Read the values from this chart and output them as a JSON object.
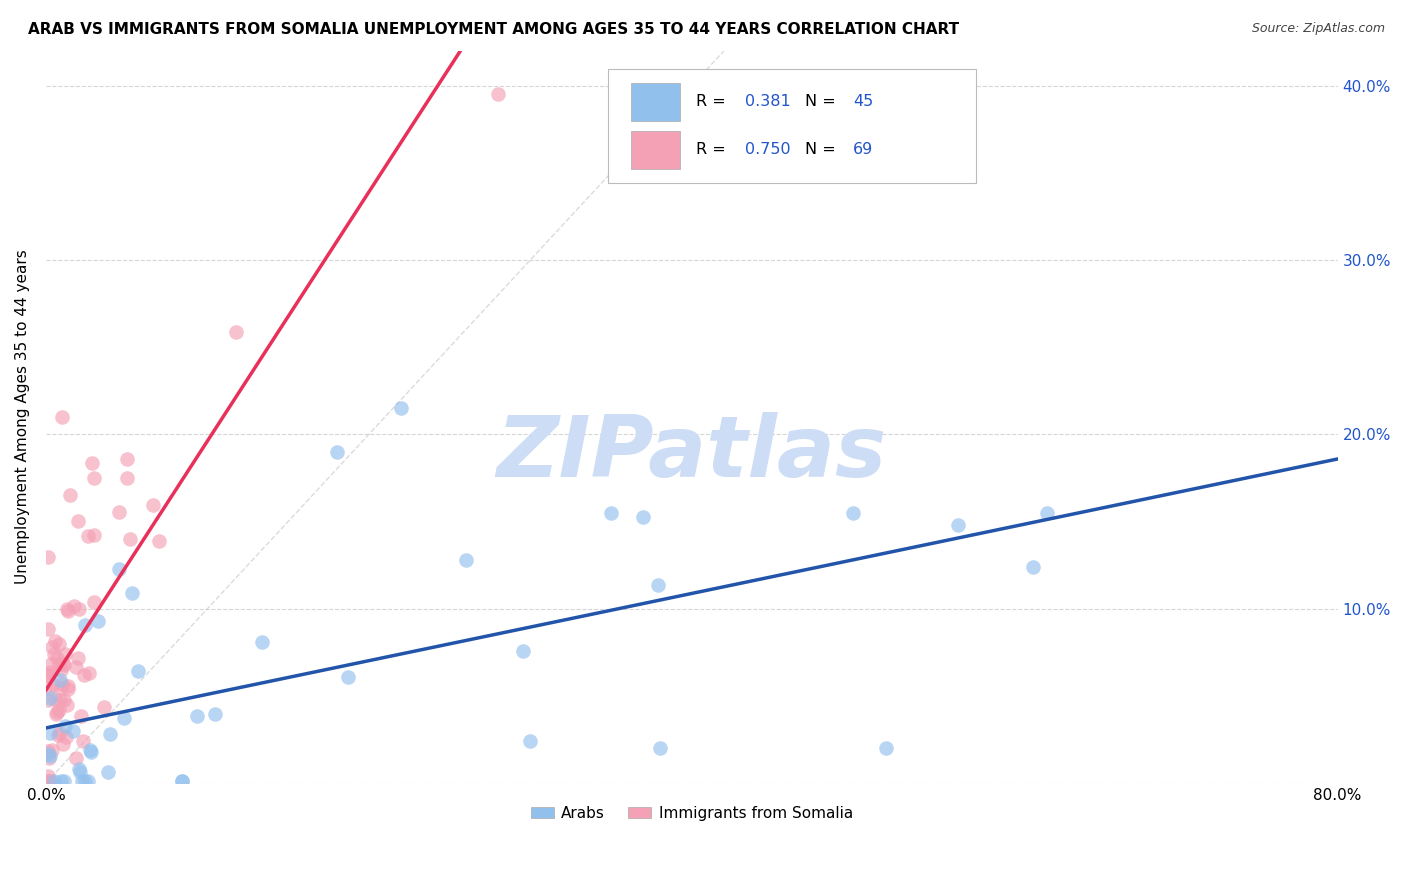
{
  "title": "ARAB VS IMMIGRANTS FROM SOMALIA UNEMPLOYMENT AMONG AGES 35 TO 44 YEARS CORRELATION CHART",
  "source": "Source: ZipAtlas.com",
  "ylabel": "Unemployment Among Ages 35 to 44 years",
  "xlim": [
    0.0,
    0.8
  ],
  "ylim": [
    0.0,
    0.42
  ],
  "xticks": [
    0.0,
    0.1,
    0.2,
    0.3,
    0.4,
    0.5,
    0.6,
    0.7,
    0.8
  ],
  "yticks_right": [
    0.0,
    0.1,
    0.2,
    0.3,
    0.4
  ],
  "yticklabels_right": [
    "",
    "10.0%",
    "20.0%",
    "30.0%",
    "40.0%"
  ],
  "arab_color": "#92c0ed",
  "somalia_color": "#f4a0b5",
  "arab_line_color": "#2255aa",
  "somalia_line_color": "#e8305a",
  "ref_line_color": "#cccccc",
  "watermark_color": "#ccddf5",
  "grid_color": "#cccccc",
  "background_color": "#ffffff",
  "title_fontsize": 11,
  "source_fontsize": 9,
  "axis_fontsize": 11,
  "legend_r_color": "#2255cc",
  "legend_n_color": "#2255cc"
}
